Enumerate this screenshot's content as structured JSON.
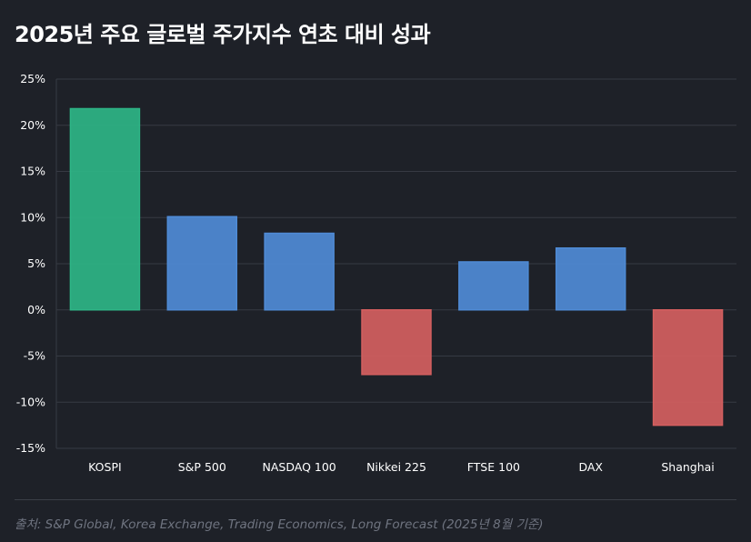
{
  "title": "2025년 주요 글로벌 주가지수 연초 대비 성과",
  "source": "출처: S&P Global, Korea Exchange, Trading Economics, Long Forecast (2025년 8월 기준)",
  "colors": {
    "positive_highlight": "#2eb586",
    "positive": "#4f8bd6",
    "negative": "#d45f5f",
    "grid": "#363a43",
    "tick_text": "#ffffff"
  },
  "chart_data": {
    "type": "bar",
    "categories": [
      "KOSPI",
      "S&P 500",
      "NASDAQ 100",
      "Nikkei 225",
      "FTSE 100",
      "DAX",
      "Shanghai"
    ],
    "values": [
      21.8,
      10.1,
      8.3,
      -7.0,
      5.2,
      6.7,
      -12.5
    ],
    "ylim": [
      -15,
      25
    ],
    "yticks": [
      25,
      20,
      15,
      10,
      5,
      0,
      -5,
      -10,
      -15
    ],
    "ytick_labels": [
      "25%",
      "20%",
      "15%",
      "10%",
      "5%",
      "0%",
      "-5%",
      "-10%",
      "-15%"
    ],
    "grid": true,
    "highlight_category": "KOSPI"
  }
}
